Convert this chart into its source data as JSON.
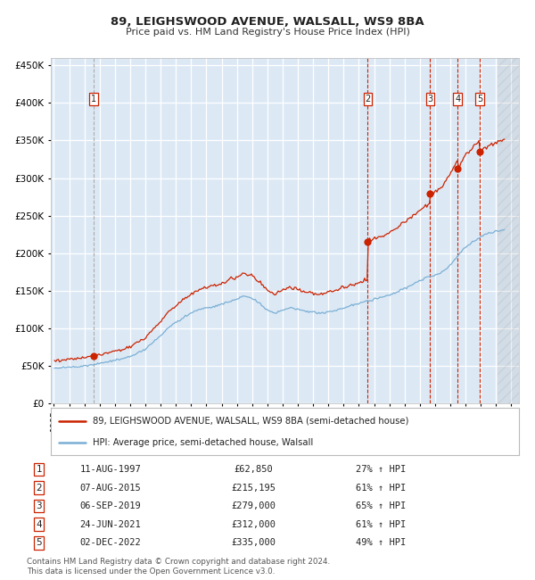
{
  "title": "89, LEIGHSWOOD AVENUE, WALSALL, WS9 8BA",
  "subtitle": "Price paid vs. HM Land Registry's House Price Index (HPI)",
  "footer1": "Contains HM Land Registry data © Crown copyright and database right 2024.",
  "footer2": "This data is licensed under the Open Government Licence v3.0.",
  "legend_line1": "89, LEIGHSWOOD AVENUE, WALSALL, WS9 8BA (semi-detached house)",
  "legend_line2": "HPI: Average price, semi-detached house, Walsall",
  "sales": [
    {
      "num": 1,
      "date": "1997-08-11",
      "price": 62850,
      "pct": "27% ↑ HPI"
    },
    {
      "num": 2,
      "date": "2015-08-07",
      "price": 215195,
      "pct": "61% ↑ HPI"
    },
    {
      "num": 3,
      "date": "2019-09-06",
      "price": 279000,
      "pct": "65% ↑ HPI"
    },
    {
      "num": 4,
      "date": "2021-06-24",
      "price": 312000,
      "pct": "61% ↑ HPI"
    },
    {
      "num": 5,
      "date": "2022-12-02",
      "price": 335000,
      "pct": "49% ↑ HPI"
    }
  ],
  "sale_dates_display": [
    "11-AUG-1997",
    "07-AUG-2015",
    "06-SEP-2019",
    "24-JUN-2021",
    "02-DEC-2022"
  ],
  "sale_prices_display": [
    "£62,850",
    "£215,195",
    "£279,000",
    "£312,000",
    "£335,000"
  ],
  "hpi_color": "#7bafd4",
  "price_color": "#cc2200",
  "sale_dot_color": "#cc2200",
  "sale_vline_color": "#cc2200",
  "sale1_vline_color": "#aaaaaa",
  "plot_bg": "#dce9f5",
  "grid_color": "#ffffff",
  "ylim": [
    0,
    460000
  ],
  "yticks": [
    0,
    50000,
    100000,
    150000,
    200000,
    250000,
    300000,
    350000,
    400000,
    450000
  ],
  "xstart": 1994.8,
  "xend": 2025.5,
  "hpi_keypoints": [
    [
      1995.0,
      46500
    ],
    [
      1995.5,
      47500
    ],
    [
      1996.0,
      48000
    ],
    [
      1996.5,
      49000
    ],
    [
      1997.0,
      50000
    ],
    [
      1997.5,
      51500
    ],
    [
      1998.0,
      53000
    ],
    [
      1998.5,
      55000
    ],
    [
      1999.0,
      57000
    ],
    [
      1999.5,
      59000
    ],
    [
      2000.0,
      62000
    ],
    [
      2000.5,
      67000
    ],
    [
      2001.0,
      72000
    ],
    [
      2001.5,
      81000
    ],
    [
      2002.0,
      90000
    ],
    [
      2002.5,
      100000
    ],
    [
      2003.0,
      108000
    ],
    [
      2003.5,
      114000
    ],
    [
      2004.0,
      120000
    ],
    [
      2004.5,
      125000
    ],
    [
      2005.0,
      127000
    ],
    [
      2005.5,
      129000
    ],
    [
      2006.0,
      132000
    ],
    [
      2006.5,
      135000
    ],
    [
      2007.0,
      139000
    ],
    [
      2007.5,
      143000
    ],
    [
      2008.0,
      140000
    ],
    [
      2008.5,
      133000
    ],
    [
      2009.0,
      124000
    ],
    [
      2009.5,
      120000
    ],
    [
      2010.0,
      124000
    ],
    [
      2010.5,
      127000
    ],
    [
      2011.0,
      125000
    ],
    [
      2011.5,
      122000
    ],
    [
      2012.0,
      121000
    ],
    [
      2012.5,
      120000
    ],
    [
      2013.0,
      122000
    ],
    [
      2013.5,
      124000
    ],
    [
      2014.0,
      127000
    ],
    [
      2014.5,
      130000
    ],
    [
      2015.0,
      133000
    ],
    [
      2015.5,
      136000
    ],
    [
      2016.0,
      139000
    ],
    [
      2016.5,
      141000
    ],
    [
      2017.0,
      144000
    ],
    [
      2017.5,
      148000
    ],
    [
      2018.0,
      153000
    ],
    [
      2018.5,
      158000
    ],
    [
      2019.0,
      163000
    ],
    [
      2019.5,
      168000
    ],
    [
      2020.0,
      170000
    ],
    [
      2020.5,
      175000
    ],
    [
      2021.0,
      184000
    ],
    [
      2021.5,
      197000
    ],
    [
      2022.0,
      208000
    ],
    [
      2022.5,
      215000
    ],
    [
      2023.0,
      222000
    ],
    [
      2023.5,
      226000
    ],
    [
      2024.0,
      229000
    ],
    [
      2024.5,
      231000
    ]
  ],
  "sale_t": [
    1997.617,
    2015.583,
    2019.675,
    2021.479,
    2022.917
  ],
  "sale_p": [
    62850,
    215195,
    279000,
    312000,
    335000
  ]
}
